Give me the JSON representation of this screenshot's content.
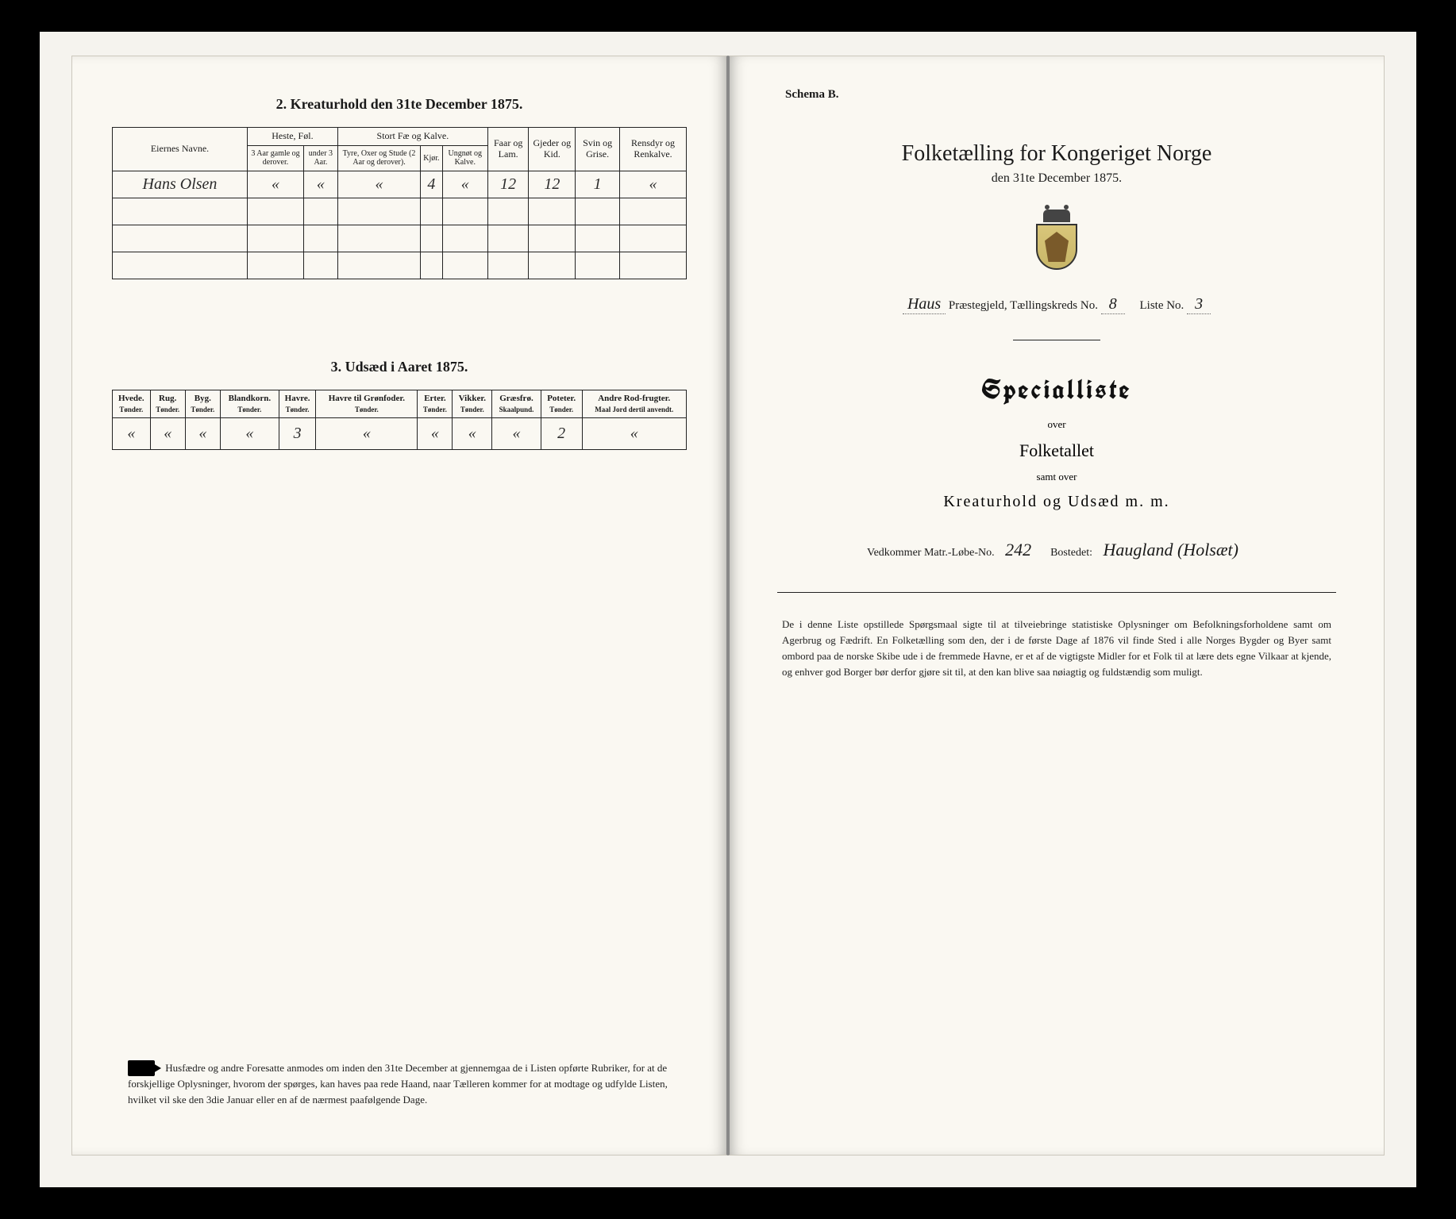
{
  "left": {
    "section2": {
      "title": "2.  Kreaturhold den 31te December 1875.",
      "owner_header": "Eiernes Navne.",
      "group_heste": "Heste, Føl.",
      "group_fae": "Stort Fæ og Kalve.",
      "col_heste_a": "3 Aar gamle og derover.",
      "col_heste_b": "under 3 Aar.",
      "col_fae_a": "Tyre, Oxer og Stude (2 Aar og derover).",
      "col_fae_b": "Kjør.",
      "col_fae_c": "Ungnøt og Kalve.",
      "col_faar": "Faar og Lam.",
      "col_gjed": "Gjeder og Kid.",
      "col_svin": "Svin og Grise.",
      "col_rens": "Rensdyr og Renkalve.",
      "row1": {
        "owner": "Hans Olsen",
        "heste_a": "«",
        "heste_b": "«",
        "fae_a": "«",
        "fae_b": "4",
        "fae_c": "«",
        "faar": "12",
        "gjed": "12",
        "svin": "1",
        "rens": "«"
      }
    },
    "section3": {
      "title": "3.  Udsæd i Aaret 1875.",
      "cols": {
        "hvede": "Hvede.",
        "rug": "Rug.",
        "byg": "Byg.",
        "bland": "Blandkorn.",
        "havre": "Havre.",
        "havre_gf": "Havre til Grønfoder.",
        "erter": "Erter.",
        "vikker": "Vikker.",
        "graes": "Græsfrø.",
        "potet": "Poteter.",
        "andre": "Andre Rod-frugter."
      },
      "unit_tonder": "Tønder.",
      "unit_skaal": "Skaalpund.",
      "unit_maal": "Maal Jord dertil anvendt.",
      "row": {
        "hvede": "«",
        "rug": "«",
        "byg": "«",
        "bland": "«",
        "havre": "3",
        "havre_gf": "«",
        "erter": "«",
        "vikker": "«",
        "graes": "«",
        "potet": "2",
        "andre": "«"
      }
    },
    "footer": "Husfædre og andre Foresatte anmodes om inden den 31te December at gjennemgaa de i Listen opførte Rubriker, for at de forskjellige Oplysninger, hvorom der spørges, kan haves paa rede Haand, naar Tælleren kommer for at modtage og udfylde Listen, hvilket vil ske den 3die Januar eller en af de nærmest paafølgende Dage."
  },
  "right": {
    "schema": "Schema B.",
    "title": "Folketælling for Kongeriget Norge",
    "subtitle": "den 31te December 1875.",
    "parish_label_pre": "Haus",
    "parish_label": "Præstegjeld,  Tællingskreds No.",
    "kreds_no": "8",
    "liste_label": "Liste No.",
    "liste_no": "3",
    "special": "Specialliste",
    "over": "over",
    "folketallet": "Folketallet",
    "samt": "samt over",
    "kreatur": "Kreaturhold og Udsæd m. m.",
    "matr_label": "Vedkommer Matr.-Løbe-No.",
    "matr_no": "242",
    "bosted_label": "Bostedet:",
    "bosted": "Haugland (Holsæt)",
    "foot": "De i denne Liste opstillede Spørgsmaal sigte til at tilveiebringe statistiske Oplysninger om Befolkningsforholdene samt om Agerbrug og Fædrift.  En Folketælling som den, der i de første Dage af 1876 vil finde Sted i alle Norges Bygder og Byer samt ombord paa de norske Skibe ude i de fremmede Havne, er et af de vigtigste Midler for et Folk til at lære dets egne Vilkaar at kjende, og enhver god Borger bør derfor gjøre sit til, at den kan blive saa nøiagtig og fuldstændig som muligt."
  },
  "colors": {
    "page_bg": "#faf8f2",
    "ink": "#1a1a1a",
    "rule": "#222222"
  }
}
